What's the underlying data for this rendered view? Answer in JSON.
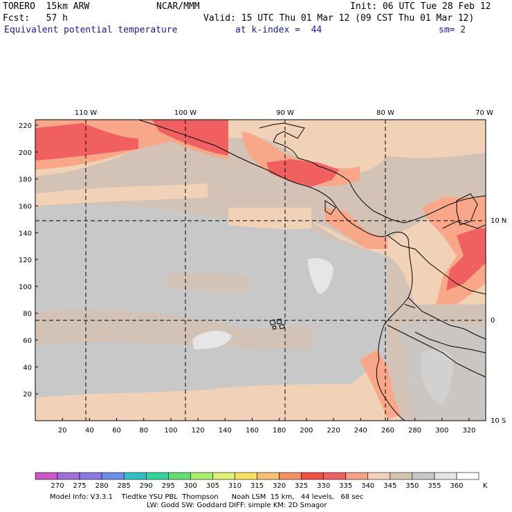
{
  "header": {
    "line1_left": "TORERO  15km ARW",
    "line1_center": "NCAR/MMM",
    "line1_right": "Init: 06 UTC Tue 28 Feb 12",
    "line2_left": "Fcst:   57 h",
    "line2_right": "Valid: 15 UTC Thu 01 Mar 12 (09 CST Thu 01 Mar 12)",
    "line3_field": "Equivalent potential temperature",
    "line3_level": "at k-index =  44",
    "line3_smooth": "sm= 2"
  },
  "map": {
    "lon_labels": [
      "110 W",
      "100 W",
      "90 W",
      "80 W",
      "70 W"
    ],
    "lat_labels": [
      "10 N",
      "0",
      "10 S"
    ],
    "y_grid_labels": [
      "220",
      "200",
      "180",
      "160",
      "140",
      "120",
      "100",
      "80",
      "60",
      "40",
      "20"
    ],
    "x_grid_labels": [
      "20",
      "40",
      "60",
      "80",
      "100",
      "120",
      "140",
      "160",
      "180",
      "200",
      "220",
      "240",
      "260",
      "280",
      "300",
      "320"
    ]
  },
  "colorbar": {
    "labels": [
      "270",
      "275",
      "280",
      "285",
      "290",
      "295",
      "300",
      "305",
      "310",
      "315",
      "320",
      "325",
      "330",
      "335",
      "340",
      "345",
      "350",
      "355",
      "360"
    ],
    "unit": "K",
    "colors": [
      "#cc55cc",
      "#a070d8",
      "#8878e8",
      "#6a8ff0",
      "#30c0c8",
      "#30d8a0",
      "#60e070",
      "#a8f068",
      "#e0f070",
      "#f8e060",
      "#f8c070",
      "#f89060",
      "#f05040",
      "#f06060",
      "#f8a088",
      "#f2d2b8",
      "#d4c4b4",
      "#c8c8c8",
      "#e6e6e6",
      "#ffffff"
    ]
  },
  "footer": {
    "line1": "Model Info: V3.3.1    Tiedtke YSU PBL  Thompson      Noah LSM  15 km,   44 levels,   68 sec",
    "line2": "LW: Godd SW: Goddard DIFF: simple KM: 2D Smagor"
  }
}
